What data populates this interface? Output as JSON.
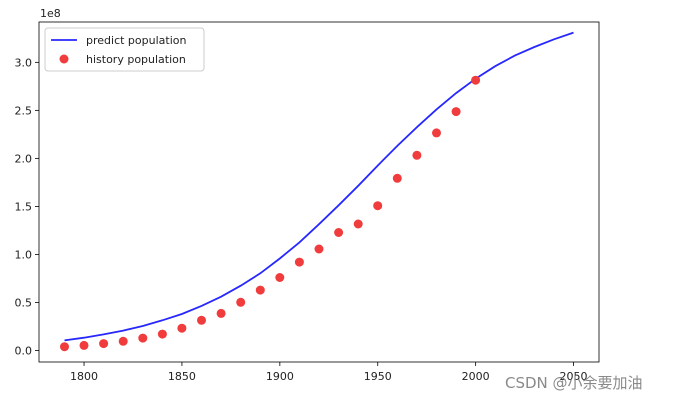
{
  "chart_data": {
    "type": "line",
    "axis_multiplier": "1e8",
    "xlim": [
      1777,
      2063
    ],
    "ylim": [
      -12000000,
      342000000
    ],
    "x_ticks": [
      1800,
      1850,
      1900,
      1950,
      2000,
      2050
    ],
    "x_tick_labels": [
      "1800",
      "1850",
      "1900",
      "1950",
      "2000",
      "2050"
    ],
    "y_ticks": [
      0,
      50000000,
      100000000,
      150000000,
      200000000,
      250000000,
      300000000
    ],
    "y_tick_labels": [
      "0.0",
      "0.5",
      "1.0",
      "1.5",
      "2.0",
      "2.5",
      "3.0"
    ],
    "legend_position": "top-left",
    "series": [
      {
        "name": "predict population",
        "kind": "line",
        "color": "#2727ff",
        "x": [
          1790,
          1800,
          1810,
          1820,
          1830,
          1840,
          1850,
          1860,
          1870,
          1880,
          1890,
          1900,
          1910,
          1920,
          1930,
          1940,
          1950,
          1960,
          1970,
          1980,
          1990,
          2000,
          2010,
          2020,
          2030,
          2040,
          2050
        ],
        "values": [
          10500000,
          13300000,
          16700000,
          20700000,
          25500000,
          31400000,
          38000000,
          46400000,
          56000000,
          67400000,
          80400000,
          95800000,
          112500000,
          131500000,
          151200000,
          171500000,
          192500000,
          213000000,
          232500000,
          251000000,
          268000000,
          283000000,
          296000000,
          307000000,
          316000000,
          324000000,
          331000000
        ]
      },
      {
        "name": "history population",
        "kind": "scatter",
        "color": "#f03c3c",
        "x": [
          1790,
          1800,
          1810,
          1820,
          1830,
          1840,
          1850,
          1860,
          1870,
          1880,
          1890,
          1900,
          1910,
          1920,
          1930,
          1940,
          1950,
          1960,
          1970,
          1980,
          1990,
          2000
        ],
        "values": [
          3900000,
          5300000,
          7200000,
          9600000,
          12900000,
          17100000,
          23200000,
          31400000,
          38600000,
          50200000,
          62900000,
          76000000,
          92000000,
          105700000,
          122800000,
          131700000,
          150700000,
          179300000,
          203200000,
          226500000,
          248700000,
          281400000
        ]
      }
    ]
  },
  "watermark": "CSDN @小余要加油"
}
